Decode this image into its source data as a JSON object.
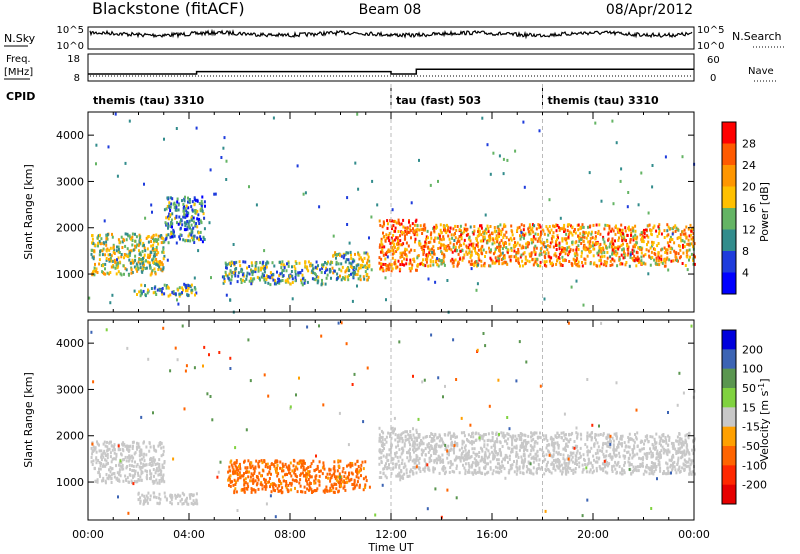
{
  "header": {
    "station": "Blackstone (fitACF)",
    "beam": "Beam 08",
    "date": "08/Apr/2012"
  },
  "top_panels": {
    "nsky_label": "N.Sky",
    "nsky_tick_hi": "10^5",
    "nsky_tick_lo": "10^0",
    "nsearch_label": "N.Search",
    "nsearch_tick_hi": "10^5",
    "nsearch_tick_lo": "10^0",
    "freq_label": "Freq.",
    "freq_unit": "[MHz]",
    "freq_ticks": [
      "18",
      "8"
    ],
    "nave_label": "Nave",
    "nave_ticks": [
      "60",
      "0"
    ],
    "cpid_label": "CPID",
    "cpid_segments": [
      {
        "label": "themis (tau) 3310",
        "start_hour": 0
      },
      {
        "label": "tau (fast) 503",
        "start_hour": 12
      },
      {
        "label": "themis (tau) 3310",
        "start_hour": 18
      }
    ]
  },
  "colorbars": {
    "power": {
      "label": "Power [dB]",
      "ticks": [
        "28",
        "24",
        "20",
        "16",
        "12",
        "8",
        "4"
      ],
      "colors": [
        "#ff0000",
        "#ff5a00",
        "#ff9600",
        "#ffc000",
        "#64b464",
        "#328c8c",
        "#1e3cdc",
        "#0000ff"
      ]
    },
    "velocity": {
      "label": "Velocity [m s",
      "label_sup": "-1",
      "label_close": "]",
      "ticks": [
        "200",
        "100",
        "50",
        "15",
        "-15",
        "-50",
        "-100",
        "-200"
      ],
      "colors": [
        "#0000dc",
        "#3c64b4",
        "#5a9650",
        "#80d240",
        "#c8c8c8",
        "#ffa000",
        "#ff6400",
        "#ff2800",
        "#e60000"
      ]
    }
  },
  "axes": {
    "ylabel": "Slant Range [km]",
    "xlabel": "Time UT",
    "yticks": [
      "4000",
      "3000",
      "2000",
      "1000"
    ],
    "xticks": [
      "00:00",
      "04:00",
      "08:00",
      "12:00",
      "16:00",
      "20:00",
      "00:00"
    ]
  },
  "chart_data": {
    "type": "heatmap",
    "x_range_hours": [
      0,
      24
    ],
    "y_range_km": [
      180,
      4500
    ],
    "freq_series": [
      {
        "from_hour": 0,
        "to_hour": 4.3,
        "freq_mhz": 10.5
      },
      {
        "from_hour": 4.3,
        "to_hour": 12,
        "freq_mhz": 11.5
      },
      {
        "from_hour": 12,
        "to_hour": 13,
        "freq_mhz": 10.5
      },
      {
        "from_hour": 13,
        "to_hour": 24,
        "freq_mhz": 12.5
      }
    ],
    "power_scatter_regions": [
      {
        "from_hour": 0.1,
        "to_hour": 3.0,
        "range_km": [
          1000,
          1900
        ],
        "power_db": 14
      },
      {
        "from_hour": 1.8,
        "to_hour": 4.3,
        "range_km": [
          550,
          800
        ],
        "power_db": 10
      },
      {
        "from_hour": 3.0,
        "to_hour": 4.6,
        "range_km": [
          1700,
          2700
        ],
        "power_db": 8
      },
      {
        "from_hour": 5.3,
        "to_hour": 9.5,
        "range_km": [
          800,
          1300
        ],
        "power_db": 10
      },
      {
        "from_hour": 9.5,
        "to_hour": 11.2,
        "range_km": [
          900,
          1500
        ],
        "power_db": 12
      },
      {
        "from_hour": 11.5,
        "to_hour": 13.0,
        "range_km": [
          1100,
          2200
        ],
        "power_db": 22
      },
      {
        "from_hour": 13.0,
        "to_hour": 24.0,
        "range_km": [
          1200,
          2100
        ],
        "power_db": 20
      }
    ],
    "velocity_scatter_regions": [
      {
        "from_hour": 0.1,
        "to_hour": 3.0,
        "range_km": [
          1000,
          1900
        ],
        "velocity_ms": 0
      },
      {
        "from_hour": 1.8,
        "to_hour": 4.3,
        "range_km": [
          550,
          800
        ],
        "velocity_ms": 0
      },
      {
        "from_hour": 5.5,
        "to_hour": 11.0,
        "range_km": [
          800,
          1500
        ],
        "velocity_ms": -40
      },
      {
        "from_hour": 11.5,
        "to_hour": 13.0,
        "range_km": [
          1100,
          2200
        ],
        "velocity_ms": 0
      },
      {
        "from_hour": 13.0,
        "to_hour": 24.0,
        "range_km": [
          1200,
          2100
        ],
        "velocity_ms": 0
      }
    ]
  }
}
